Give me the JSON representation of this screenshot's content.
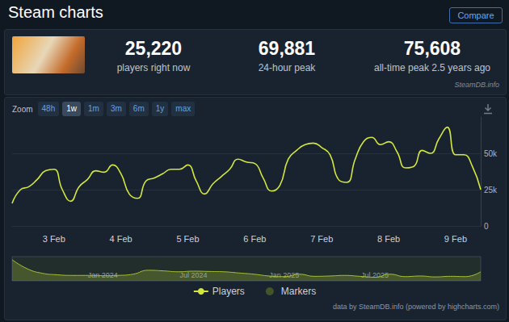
{
  "header": {
    "title": "Steam charts",
    "compare": "Compare"
  },
  "stats": [
    {
      "value": "25,220",
      "label": "players right now"
    },
    {
      "value": "69,881",
      "label": "24-hour peak"
    },
    {
      "value": "75,608",
      "label": "all-time peak 2.5 years ago"
    }
  ],
  "source": "SteamDB.info",
  "zoom": {
    "label": "Zoom",
    "buttons": [
      "48h",
      "1w",
      "1m",
      "3m",
      "6m",
      "1y",
      "max"
    ],
    "active": "1w"
  },
  "footer": "data by SteamDB.info (powered by highcharts.com)",
  "chart_data": [
    {
      "type": "line",
      "categories": [
        null,
        null,
        null,
        null,
        null,
        "3 Feb",
        null,
        null,
        null,
        null,
        null,
        null,
        null,
        "4 Feb",
        null,
        null,
        null,
        null,
        null,
        null,
        null,
        "5 Feb",
        null,
        null,
        null,
        null,
        null,
        null,
        null,
        "6 Feb",
        null,
        null,
        null,
        null,
        null,
        null,
        null,
        "7 Feb",
        null,
        null,
        null,
        null,
        null,
        null,
        null,
        "8 Feb",
        null,
        null,
        null,
        null,
        null,
        null,
        null,
        "9 Feb",
        null,
        null,
        null
      ],
      "series": [
        {
          "name": "Players",
          "color": "#d2e63c",
          "values": [
            15600,
            25000,
            27000,
            32000,
            38000,
            39000,
            25000,
            17000,
            27000,
            32000,
            38000,
            37000,
            42000,
            36000,
            22000,
            19000,
            31000,
            33000,
            36000,
            39000,
            39000,
            42000,
            31000,
            22000,
            29000,
            34000,
            39000,
            46000,
            44000,
            43000,
            33000,
            24000,
            28000,
            46000,
            52000,
            56000,
            57000,
            54000,
            49000,
            32000,
            30000,
            46000,
            58000,
            61000,
            56000,
            58000,
            51000,
            40000,
            41000,
            52000,
            50000,
            60000,
            68000,
            49000,
            49000,
            41000,
            25000
          ]
        },
        {
          "name": "Markers",
          "color": "#4e6226",
          "type": "scatter",
          "marker": "circle",
          "values": [
            null,
            null,
            null,
            null,
            null,
            null,
            null,
            null,
            null,
            null,
            null,
            null,
            null,
            null,
            null,
            null,
            null,
            null,
            null,
            null,
            null,
            null,
            null,
            null,
            null,
            null,
            null,
            null,
            null,
            null,
            null,
            null,
            null,
            null,
            null,
            null,
            null,
            null,
            null,
            null,
            null,
            null,
            null,
            null,
            null,
            null,
            null,
            null,
            null,
            null,
            null,
            null,
            null,
            null,
            null,
            null,
            null
          ]
        }
      ],
      "ylim": [
        0,
        75000
      ],
      "yticks": [
        0,
        {
          "value": 25000,
          "label": "25k"
        },
        {
          "value": 50000,
          "label": "50k"
        }
      ],
      "grid": true,
      "legend": "bottom"
    },
    {
      "type": "area",
      "categories": [
        null,
        null,
        null,
        null,
        null,
        null,
        "Jan 2024",
        null,
        null,
        null,
        null,
        null,
        "Jul 2024",
        null,
        null,
        null,
        null,
        null,
        "Jan 2025",
        null,
        null,
        null,
        null,
        null,
        "Jul 2025",
        null,
        null,
        null,
        null,
        null,
        null,
        null
      ],
      "values": [
        70000,
        40000,
        25000,
        20000,
        18000,
        18000,
        17000,
        18000,
        22000,
        35000,
        33000,
        30000,
        32000,
        31000,
        30000,
        26000,
        22000,
        16000,
        14000,
        22000,
        15000,
        16000,
        18000,
        15000,
        12000,
        22000,
        14000,
        16000,
        13000,
        15000,
        14000,
        30000
      ],
      "color": "#a9c236",
      "ylim": [
        0,
        80000
      ],
      "tick_labels": "x"
    }
  ]
}
